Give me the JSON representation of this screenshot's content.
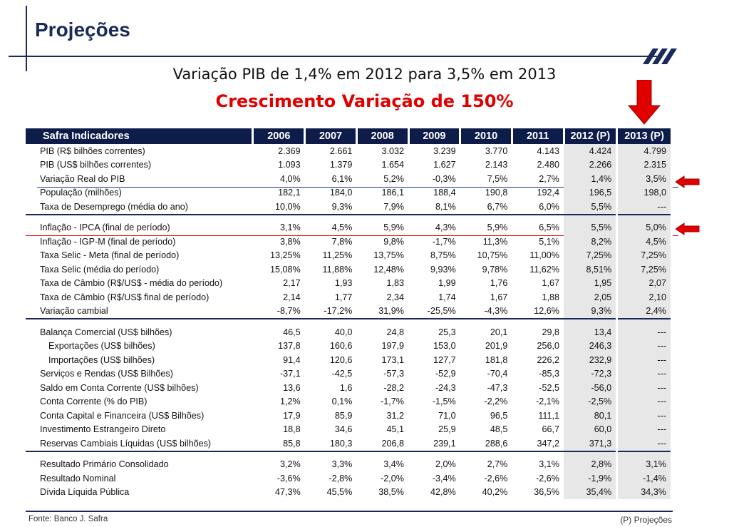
{
  "header": {
    "title": "Projeções",
    "subtitle": "Variação PIB de 1,4% em 2012 para 3,5% em 2013",
    "headline": "Crescimento Variação de 150%"
  },
  "table": {
    "title": "Safra Indicadores",
    "years": [
      "2006",
      "2007",
      "2008",
      "2009",
      "2010",
      "2011",
      "2012 (P)",
      "2013 (P)"
    ],
    "groups": [
      [
        {
          "label": "PIB (R$ bilhões correntes)",
          "values": [
            "2.369",
            "2.661",
            "3.032",
            "3.239",
            "3.770",
            "4.143",
            "4.424",
            "4.799"
          ]
        },
        {
          "label": "PIB (US$ bilhões correntes)",
          "values": [
            "1.093",
            "1.379",
            "1.654",
            "1.627",
            "2.143",
            "2.480",
            "2.266",
            "2.315"
          ]
        },
        {
          "label": "Variação Real do PIB",
          "values": [
            "4,0%",
            "6,1%",
            "5,2%",
            "-0,3%",
            "7,5%",
            "2,7%",
            "1,4%",
            "3,5%"
          ]
        },
        {
          "label": "População (milhões)",
          "values": [
            "182,1",
            "184,0",
            "186,1",
            "188,4",
            "190,8",
            "192,4",
            "196,5",
            "198,0"
          ]
        },
        {
          "label": "Taxa de Desemprego (média do ano)",
          "values": [
            "10,0%",
            "9,3%",
            "7,9%",
            "8,1%",
            "6,7%",
            "6,0%",
            "5,5%",
            "---"
          ]
        }
      ],
      [
        {
          "label": "Inflação - IPCA (final de período)",
          "values": [
            "3,1%",
            "4,5%",
            "5,9%",
            "4,3%",
            "5,9%",
            "6,5%",
            "5,5%",
            "5,0%"
          ]
        },
        {
          "label": "Inflação - IGP-M (final de período)",
          "values": [
            "3,8%",
            "7,8%",
            "9,8%",
            "-1,7%",
            "11,3%",
            "5,1%",
            "8,2%",
            "4,5%"
          ]
        },
        {
          "label": "Taxa Selic - Meta (final de período)",
          "values": [
            "13,25%",
            "11,25%",
            "13,75%",
            "8,75%",
            "10,75%",
            "11,00%",
            "7,25%",
            "7,25%"
          ]
        },
        {
          "label": "Taxa Selic (média do período)",
          "values": [
            "15,08%",
            "11,88%",
            "12,48%",
            "9,93%",
            "9,78%",
            "11,62%",
            "8,51%",
            "7,25%"
          ]
        },
        {
          "label": "Taxa de Câmbio (R$/US$ - média do período)",
          "values": [
            "2,17",
            "1,93",
            "1,83",
            "1,99",
            "1,76",
            "1,67",
            "1,95",
            "2,07"
          ]
        },
        {
          "label": "Taxa de Câmbio (R$/US$ final de período)",
          "values": [
            "2,14",
            "1,77",
            "2,34",
            "1,74",
            "1,67",
            "1,88",
            "2,05",
            "2,10"
          ]
        },
        {
          "label": "Variação cambial",
          "values": [
            "-8,7%",
            "-17,2%",
            "31,9%",
            "-25,5%",
            "-4,3%",
            "12,6%",
            "9,3%",
            "2,4%"
          ]
        }
      ],
      [
        {
          "label": "Balança Comercial  (US$ bilhões)",
          "values": [
            "46,5",
            "40,0",
            "24,8",
            "25,3",
            "20,1",
            "29,8",
            "13,4",
            "---"
          ]
        },
        {
          "label": "Exportações (US$ bilhões)",
          "indent": true,
          "values": [
            "137,8",
            "160,6",
            "197,9",
            "153,0",
            "201,9",
            "256,0",
            "246,3",
            "---"
          ]
        },
        {
          "label": "Importações (US$ bilhões)",
          "indent": true,
          "values": [
            "91,4",
            "120,6",
            "173,1",
            "127,7",
            "181,8",
            "226,2",
            "232,9",
            "---"
          ]
        },
        {
          "label": "Serviços e Rendas (US$ Bilhões)",
          "values": [
            "-37,1",
            "-42,5",
            "-57,3",
            "-52,9",
            "-70,4",
            "-85,3",
            "-72,3",
            "---"
          ]
        },
        {
          "label": "Saldo em Conta Corrente (US$ bilhões)",
          "values": [
            "13,6",
            "1,6",
            "-28,2",
            "-24,3",
            "-47,3",
            "-52,5",
            "-56,0",
            "---"
          ]
        },
        {
          "label": "Conta Corrente (% do PIB)",
          "values": [
            "1,2%",
            "0,1%",
            "-1,7%",
            "-1,5%",
            "-2,2%",
            "-2,1%",
            "-2,5%",
            "---"
          ]
        },
        {
          "label": "Conta Capital e Financeira (US$ Bilhões)",
          "values": [
            "17,9",
            "85,9",
            "31,2",
            "71,0",
            "96,5",
            "111,1",
            "80,1",
            "---"
          ]
        },
        {
          "label": "Investimento Estrangeiro Direto",
          "values": [
            "18,8",
            "34,6",
            "45,1",
            "25,9",
            "48,5",
            "66,7",
            "60,0",
            "---"
          ]
        },
        {
          "label": "Reservas Cambiais Líquidas (US$ bilhões)",
          "values": [
            "85,8",
            "180,3",
            "206,8",
            "239,1",
            "288,6",
            "347,2",
            "371,3",
            "---"
          ]
        }
      ],
      [
        {
          "label": "Resultado Primário Consolidado",
          "values": [
            "3,2%",
            "3,3%",
            "3,4%",
            "2,0%",
            "2,7%",
            "3,1%",
            "2,8%",
            "3,1%"
          ]
        },
        {
          "label": "Resultado Nominal",
          "values": [
            "-3,6%",
            "-2,8%",
            "-2,0%",
            "-3,4%",
            "-2,6%",
            "-2,6%",
            "-1,9%",
            "-1,4%"
          ]
        },
        {
          "label": "Dívida Líquida Pública",
          "values": [
            "47,3%",
            "45,5%",
            "38,5%",
            "42,8%",
            "40,2%",
            "36,5%",
            "35,4%",
            "34,3%"
          ]
        }
      ]
    ]
  },
  "footer": {
    "source": "Fonte: Banco J. Safra",
    "note": "(P) Projeções"
  },
  "colors": {
    "title": "#1a2a5a",
    "header_bg": "#0e1c4a",
    "headline": "#e00000",
    "arrow": "#e00000",
    "projection_bg": "#e7e7e7"
  }
}
